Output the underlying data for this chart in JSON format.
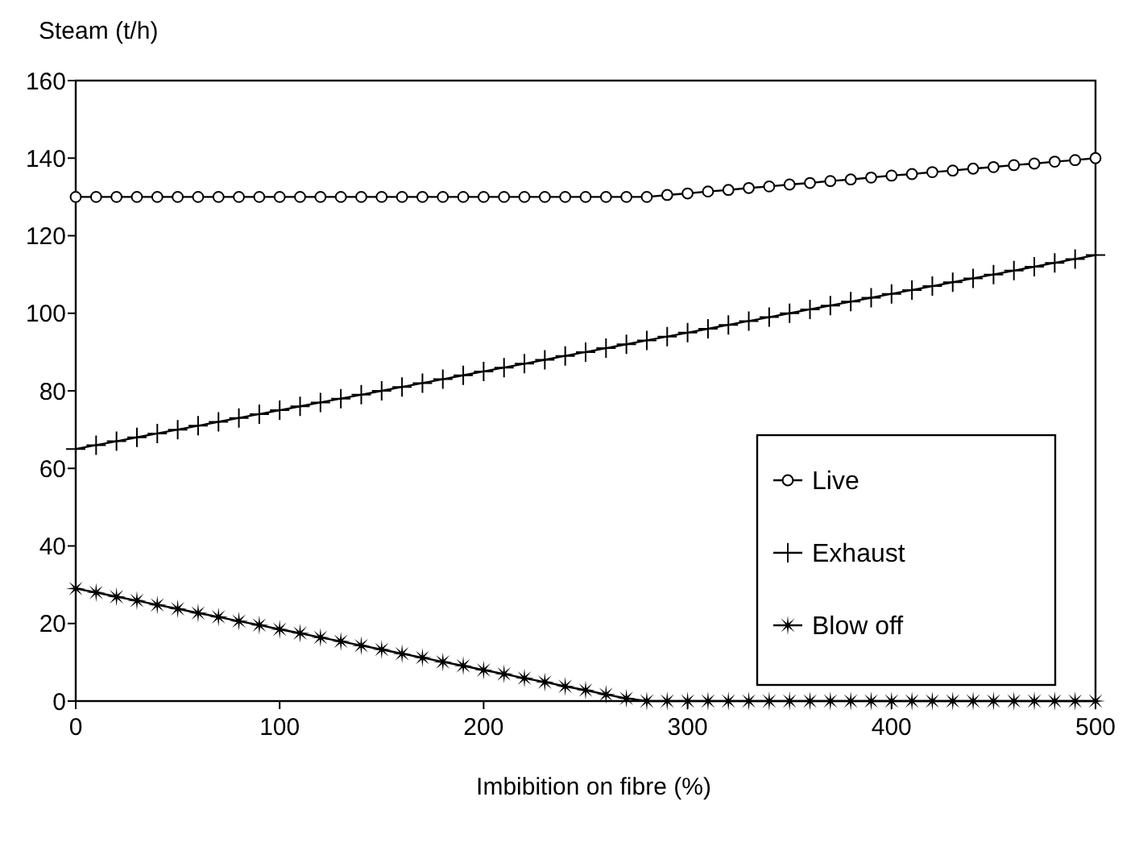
{
  "chart_data": {
    "type": "line",
    "xlabel": "Imbibition on fibre (%)",
    "ylabel": "Steam (t/h)",
    "x": [
      0,
      10,
      20,
      30,
      40,
      50,
      60,
      70,
      80,
      90,
      100,
      110,
      120,
      130,
      140,
      150,
      160,
      170,
      180,
      190,
      200,
      210,
      220,
      230,
      240,
      250,
      260,
      270,
      280,
      290,
      300,
      310,
      320,
      330,
      340,
      350,
      360,
      370,
      380,
      390,
      400,
      410,
      420,
      430,
      440,
      450,
      460,
      470,
      480,
      490,
      500
    ],
    "xlim": [
      0,
      500
    ],
    "xticks": [
      0,
      100,
      200,
      300,
      400,
      500
    ],
    "ylim": [
      0,
      160
    ],
    "yticks": [
      0,
      20,
      40,
      60,
      80,
      100,
      120,
      140,
      160
    ],
    "grid": false,
    "legend": "right",
    "line_style": "solid",
    "series": [
      {
        "name": "Live",
        "color": "#000000",
        "marker": "circle",
        "values": [
          130,
          130,
          130,
          130,
          130,
          130,
          130,
          130,
          130,
          130,
          130,
          130,
          130,
          130,
          130,
          130,
          130,
          130,
          130,
          130,
          130,
          130,
          130,
          130,
          130,
          130,
          130,
          130,
          130,
          130.5,
          130.9,
          131.4,
          131.8,
          132.3,
          132.7,
          133.2,
          133.6,
          134.1,
          134.5,
          135,
          135.5,
          135.9,
          136.4,
          136.8,
          137.3,
          137.7,
          138.2,
          138.6,
          139.1,
          139.5,
          140
        ]
      },
      {
        "name": "Exhaust",
        "color": "#000000",
        "marker": "cross",
        "values": [
          65,
          66,
          67,
          68,
          69,
          70,
          71,
          72,
          73,
          74,
          75,
          76,
          77,
          78,
          79,
          80,
          81,
          82,
          83,
          84,
          85,
          86,
          87,
          88,
          89,
          90,
          91,
          92,
          93,
          94,
          95,
          96,
          97,
          98,
          99,
          100,
          101,
          102,
          103,
          104,
          105,
          106,
          107,
          108,
          109,
          110,
          111,
          112,
          113,
          114,
          115
        ]
      },
      {
        "name": "Blow off",
        "color": "#000000",
        "marker": "star",
        "values": [
          29,
          28,
          26.9,
          25.9,
          24.8,
          23.8,
          22.7,
          21.7,
          20.6,
          19.6,
          18.5,
          17.5,
          16.4,
          15.4,
          14.3,
          13.3,
          12.2,
          11.2,
          10.1,
          9.1,
          8,
          7,
          5.9,
          4.9,
          3.8,
          2.8,
          1.7,
          0.7,
          0,
          0,
          0,
          0,
          0,
          0,
          0,
          0,
          0,
          0,
          0,
          0,
          0,
          0,
          0,
          0,
          0,
          0,
          0,
          0,
          0,
          0,
          0
        ]
      }
    ]
  }
}
